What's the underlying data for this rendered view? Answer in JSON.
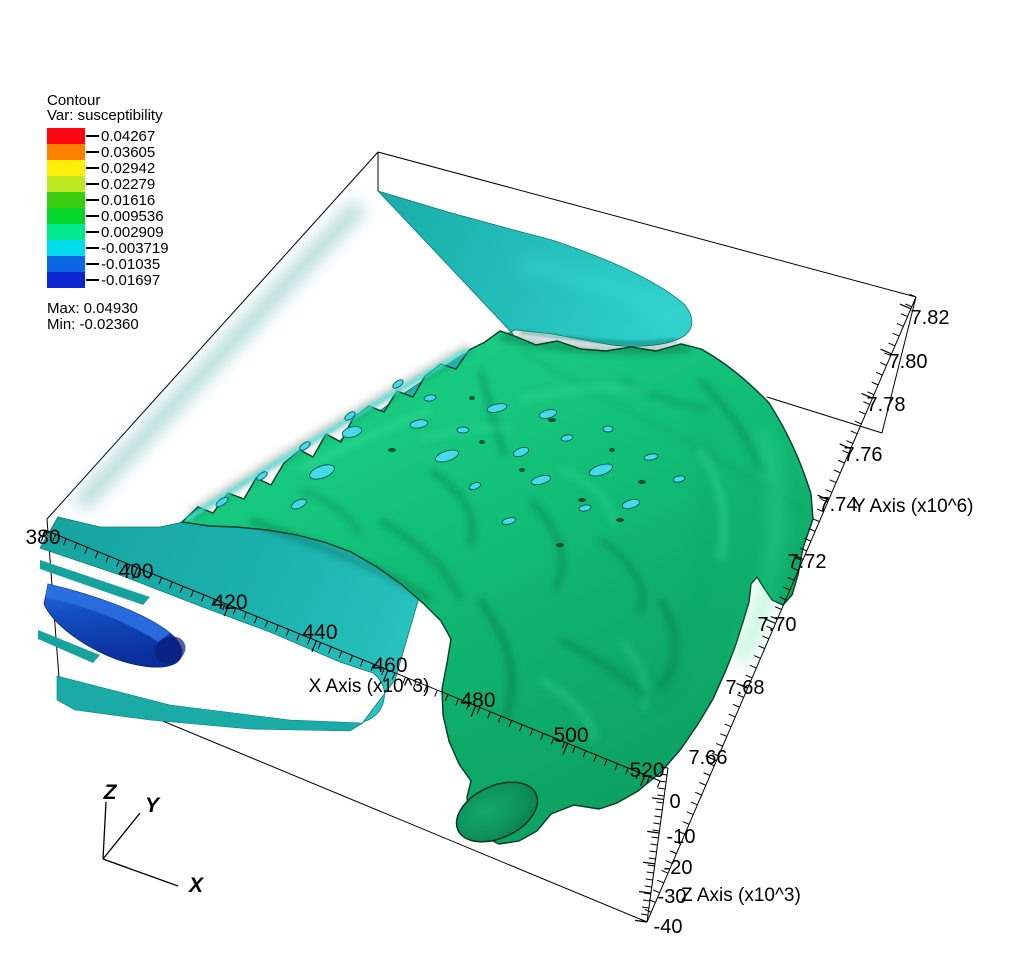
{
  "legend": {
    "title": "Contour",
    "var_line": "Var: susceptibility",
    "entries": [
      {
        "color": "#fa0510",
        "value": "0.04267"
      },
      {
        "color": "#ff7f00",
        "value": "0.03605"
      },
      {
        "color": "#fcee0a",
        "value": "0.02942"
      },
      {
        "color": "#bfe822",
        "value": "0.02279"
      },
      {
        "color": "#38cd0e",
        "value": "0.01616"
      },
      {
        "color": "#06d62b",
        "value": "0.009536"
      },
      {
        "color": "#02e88c",
        "value": "0.002909"
      },
      {
        "color": "#02dcec",
        "value": "-0.003719"
      },
      {
        "color": "#0a64e4",
        "value": "-0.01035"
      },
      {
        "color": "#0b24cd",
        "value": "-0.01697"
      }
    ],
    "max_line": "Max: 0.04930",
    "min_line": "Min: -0.02360"
  },
  "chart_data": {
    "type": "contour-3d-isosurface",
    "title": "Contour",
    "variable": "susceptibility",
    "levels": [
      0.04267,
      0.03605,
      0.02942,
      0.02279,
      0.01616,
      0.009536,
      0.002909,
      -0.003719,
      -0.01035,
      -0.01697
    ],
    "level_colors": [
      "#fa0510",
      "#ff7f00",
      "#fcee0a",
      "#bfe822",
      "#38cd0e",
      "#06d62b",
      "#02e88c",
      "#02dcec",
      "#0a64e4",
      "#0b24cd"
    ],
    "max": 0.0493,
    "min": -0.0236,
    "axes": {
      "x": {
        "label": "X Axis (x10^3)",
        "ticks": [
          "380",
          "400",
          "420",
          "440",
          "460",
          "480",
          "500",
          "520"
        ]
      },
      "y": {
        "label": "Y Axis (x10^6)",
        "ticks": [
          "7.82",
          "7.80",
          "7.78",
          "7.76",
          "7.74",
          "7.72",
          "7.70",
          "7.68",
          "7.66"
        ]
      },
      "z": {
        "label": "Z Axis (x10^3)",
        "ticks": [
          "0",
          "-10",
          "-20",
          "-30",
          "-40"
        ]
      }
    },
    "orientation_triad": {
      "x": "X",
      "y": "Y",
      "z": "Z"
    },
    "visible_surface_colors": {
      "teal_slice": "#1cb2ae",
      "green_isosurface": "#12c178",
      "blue_isosurface": "#1450c4",
      "cyan_patches": "#44dbe9"
    }
  }
}
